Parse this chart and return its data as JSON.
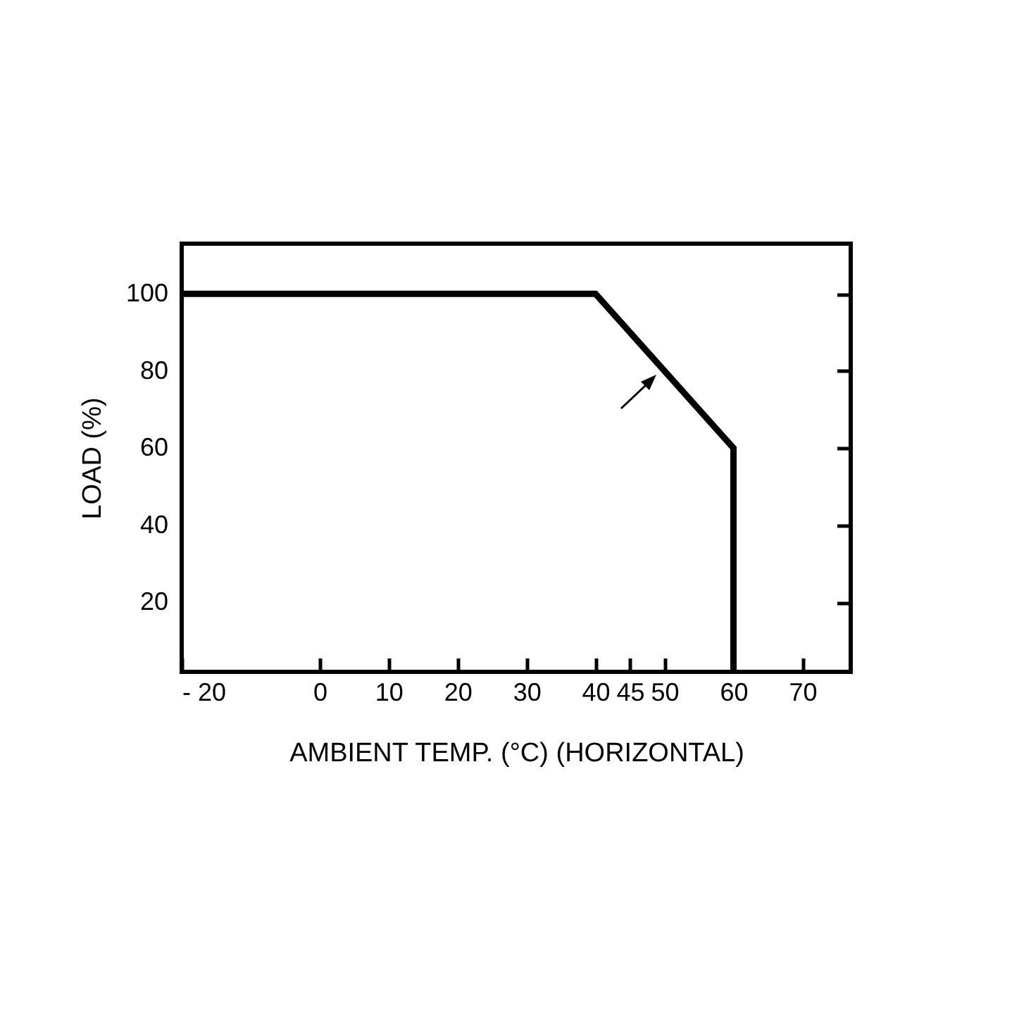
{
  "chart_data": {
    "type": "line",
    "xlabel": "AMBIENT TEMP. (°C)    (HORIZONTAL)",
    "ylabel": "LOAD (%)",
    "x": [
      -20,
      40,
      60,
      60
    ],
    "series": [
      {
        "color": "#000000",
        "values": [
          100,
          100,
          60,
          2
        ]
      }
    ],
    "xlim": [
      -20,
      77
    ],
    "xticks": [
      -20,
      0,
      10,
      20,
      30,
      40,
      45,
      50,
      60,
      70
    ],
    "ylim": [
      2,
      113
    ],
    "yticks": [
      20,
      40,
      60,
      80,
      100
    ],
    "grid": false,
    "marker": "none",
    "line_style": "solid"
  }
}
